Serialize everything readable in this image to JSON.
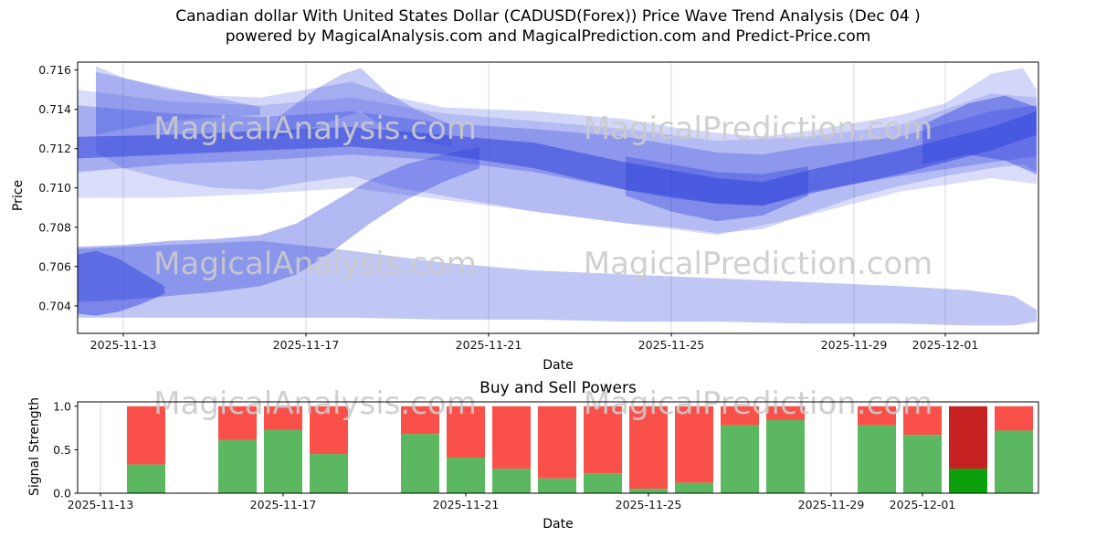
{
  "header": {
    "title_line1": "Canadian dollar With United States Dollar (CADUSD(Forex)) Price Wave Trend Analysis (Dec 04 )",
    "title_line2": "powered by MagicalAnalysis.com and MagicalPrediction.com and Predict-Price.com"
  },
  "watermarks": {
    "left": "MagicalAnalysis.com",
    "right": "MagicalPrediction.com"
  },
  "colors": {
    "band": "#3345dd",
    "buy": "#5cb860",
    "sell": "#f9514a",
    "buy_highlight": "#0ca10c",
    "sell_highlight": "#c62222",
    "grid": "#d9d9d9",
    "spine": "#000000",
    "text": "#111111",
    "watermark": "#cbcbcb"
  },
  "chart_data": [
    {
      "type": "area",
      "name": "price-wave-trend",
      "title": "",
      "ylabel": "Price",
      "xlabel": "Date",
      "ylim": [
        0.7026,
        0.7164
      ],
      "grid": "vertical",
      "legend": "none",
      "yticks": [
        {
          "v": 0.704,
          "label": "0.704"
        },
        {
          "v": 0.706,
          "label": "0.706"
        },
        {
          "v": 0.708,
          "label": "0.708"
        },
        {
          "v": 0.71,
          "label": "0.710"
        },
        {
          "v": 0.712,
          "label": "0.712"
        },
        {
          "v": 0.714,
          "label": "0.714"
        },
        {
          "v": 0.716,
          "label": "0.716"
        }
      ],
      "xticks": [
        {
          "day": 1,
          "label": "2025-11-13"
        },
        {
          "day": 5,
          "label": "2025-11-17"
        },
        {
          "day": 9,
          "label": "2025-11-21"
        },
        {
          "day": 13,
          "label": "2025-11-25"
        },
        {
          "day": 17,
          "label": "2025-11-29"
        },
        {
          "day": 19,
          "label": "2025-12-01"
        }
      ],
      "bands": [
        {
          "name": "lower-channel",
          "op": 0.3,
          "x": [
            0,
            2,
            4,
            6,
            8,
            10,
            12,
            14,
            16,
            18,
            19.5,
            20.5,
            21
          ],
          "hi": [
            0.7069,
            0.7071,
            0.7073,
            0.7068,
            0.7062,
            0.7058,
            0.7056,
            0.7054,
            0.7052,
            0.705,
            0.7048,
            0.7045,
            0.7038
          ],
          "lo": [
            0.7034,
            0.7034,
            0.7034,
            0.7034,
            0.7033,
            0.7033,
            0.7032,
            0.7032,
            0.7031,
            0.7031,
            0.703,
            0.703,
            0.7032
          ]
        },
        {
          "name": "lower-left-core",
          "op": 0.5,
          "x": [
            0,
            0.4,
            0.9,
            1.4,
            1.9
          ],
          "hi": [
            0.7066,
            0.7068,
            0.7064,
            0.7057,
            0.705
          ],
          "lo": [
            0.7036,
            0.7035,
            0.7037,
            0.7041,
            0.7046
          ]
        },
        {
          "name": "rising-band",
          "op": 0.38,
          "x": [
            0,
            1,
            2,
            3,
            4,
            4.8,
            5.6,
            6.4,
            7.2,
            8,
            8.8
          ],
          "hi": [
            0.707,
            0.7071,
            0.7073,
            0.7074,
            0.7076,
            0.7082,
            0.7093,
            0.7104,
            0.7112,
            0.7117,
            0.7121
          ],
          "lo": [
            0.7042,
            0.7043,
            0.7045,
            0.7047,
            0.705,
            0.7056,
            0.7068,
            0.7082,
            0.7094,
            0.7103,
            0.711
          ]
        },
        {
          "name": "upper-wide-envelope",
          "op": 0.22,
          "x": [
            0.4,
            1,
            2,
            3,
            4,
            5,
            6,
            7,
            8,
            9,
            10,
            11,
            12,
            13,
            14,
            15,
            16,
            17,
            18,
            19,
            20,
            20.7,
            21
          ],
          "hi": [
            0.7162,
            0.7156,
            0.715,
            0.7147,
            0.7146,
            0.715,
            0.7154,
            0.7146,
            0.7141,
            0.714,
            0.7139,
            0.7137,
            0.7135,
            0.7131,
            0.7128,
            0.7126,
            0.7129,
            0.7133,
            0.7137,
            0.7143,
            0.7158,
            0.7161,
            0.715
          ],
          "lo": [
            0.7118,
            0.711,
            0.7104,
            0.71,
            0.7099,
            0.7103,
            0.7106,
            0.71,
            0.7096,
            0.7092,
            0.7088,
            0.7085,
            0.7082,
            0.708,
            0.7077,
            0.7079,
            0.7087,
            0.7095,
            0.7101,
            0.7106,
            0.711,
            0.7112,
            0.7108
          ]
        },
        {
          "name": "upper-medium-band",
          "op": 0.3,
          "x": [
            0,
            1,
            2,
            4,
            6,
            8,
            10,
            12,
            13,
            14,
            15,
            16,
            18,
            20,
            21
          ],
          "hi": [
            0.7142,
            0.714,
            0.7138,
            0.7136,
            0.7139,
            0.7133,
            0.713,
            0.7126,
            0.7122,
            0.7118,
            0.7117,
            0.7121,
            0.7126,
            0.7139,
            0.7142
          ],
          "lo": [
            0.7108,
            0.711,
            0.7112,
            0.7114,
            0.7117,
            0.7114,
            0.7108,
            0.7099,
            0.7096,
            0.7092,
            0.7091,
            0.7098,
            0.7106,
            0.7113,
            0.7116
          ]
        },
        {
          "name": "dark-core-band",
          "op": 0.55,
          "x": [
            0,
            2,
            4,
            6,
            7,
            8,
            10,
            12,
            13,
            14,
            15,
            16,
            18,
            20,
            21
          ],
          "hi": [
            0.7126,
            0.7127,
            0.7129,
            0.7131,
            0.7129,
            0.7127,
            0.7123,
            0.7113,
            0.7109,
            0.7105,
            0.7103,
            0.7109,
            0.7119,
            0.7131,
            0.7139
          ],
          "lo": [
            0.7115,
            0.7117,
            0.7119,
            0.7121,
            0.7119,
            0.7117,
            0.711,
            0.7099,
            0.7095,
            0.7092,
            0.7091,
            0.7097,
            0.7107,
            0.7119,
            0.7127
          ]
        },
        {
          "name": "mid-peak-spike",
          "op": 0.28,
          "x": [
            4.4,
            5.2,
            5.8,
            6.2,
            6.8,
            7.4,
            8.2
          ],
          "hi": [
            0.7136,
            0.715,
            0.7158,
            0.7161,
            0.7148,
            0.714,
            0.7132
          ],
          "lo": [
            0.7126,
            0.7131,
            0.7136,
            0.7139,
            0.7129,
            0.7124,
            0.7121
          ]
        },
        {
          "name": "left-upper-wedge",
          "op": 0.26,
          "x": [
            0.4,
            1,
            2,
            3,
            4
          ],
          "hi": [
            0.7159,
            0.7156,
            0.7151,
            0.7146,
            0.7141
          ],
          "lo": [
            0.7127,
            0.713,
            0.7134,
            0.7136,
            0.7137
          ]
        },
        {
          "name": "dip-cluster",
          "op": 0.4,
          "x": [
            12,
            13,
            14,
            15,
            16
          ],
          "hi": [
            0.7116,
            0.7112,
            0.7108,
            0.7107,
            0.7111
          ],
          "lo": [
            0.7096,
            0.7088,
            0.7083,
            0.7086,
            0.7096
          ]
        },
        {
          "name": "right-end-core",
          "op": 0.45,
          "x": [
            18.5,
            19.5,
            20.3,
            21
          ],
          "hi": [
            0.7132,
            0.7143,
            0.7147,
            0.7141
          ],
          "lo": [
            0.7112,
            0.7117,
            0.7114,
            0.7107
          ]
        },
        {
          "name": "broad-haze-band",
          "op": 0.18,
          "x": [
            0,
            2,
            4,
            6,
            8,
            10,
            12,
            14,
            16,
            18,
            20,
            21
          ],
          "hi": [
            0.715,
            0.7144,
            0.7142,
            0.7146,
            0.7138,
            0.7134,
            0.713,
            0.7124,
            0.7126,
            0.7132,
            0.7148,
            0.7146
          ],
          "lo": [
            0.7095,
            0.7095,
            0.7097,
            0.71,
            0.7094,
            0.7088,
            0.7082,
            0.7076,
            0.7086,
            0.7098,
            0.7105,
            0.7102
          ]
        }
      ]
    },
    {
      "type": "bar",
      "name": "buy-sell-powers",
      "title": "Buy and Sell Powers",
      "ylabel": "Signal Strength",
      "xlabel": "Date",
      "ylim": [
        0,
        1.05
      ],
      "stack_total": 1.0,
      "grid": "vertical",
      "legend": "none",
      "yticks": [
        {
          "v": 0.0,
          "label": "0.0"
        },
        {
          "v": 0.5,
          "label": "0.5"
        },
        {
          "v": 1.0,
          "label": "1.0"
        }
      ],
      "xticks": [
        {
          "day": 1,
          "label": "2025-11-13"
        },
        {
          "day": 5,
          "label": "2025-11-17"
        },
        {
          "day": 9,
          "label": "2025-11-21"
        },
        {
          "day": 13,
          "label": "2025-11-25"
        },
        {
          "day": 17,
          "label": "2025-11-29"
        },
        {
          "day": 19,
          "label": "2025-12-01"
        }
      ],
      "bars": [
        {
          "day": 2,
          "date": "2025-11-14",
          "buy": 0.33,
          "sell": 0.67
        },
        {
          "day": 4,
          "date": "2025-11-16",
          "buy": 0.61,
          "sell": 0.39
        },
        {
          "day": 5,
          "date": "2025-11-17",
          "buy": 0.73,
          "sell": 0.27
        },
        {
          "day": 6,
          "date": "2025-11-18",
          "buy": 0.45,
          "sell": 0.55
        },
        {
          "day": 8,
          "date": "2025-11-20",
          "buy": 0.68,
          "sell": 0.32
        },
        {
          "day": 9,
          "date": "2025-11-21",
          "buy": 0.41,
          "sell": 0.59
        },
        {
          "day": 10,
          "date": "2025-11-22",
          "buy": 0.28,
          "sell": 0.72
        },
        {
          "day": 11,
          "date": "2025-11-23",
          "buy": 0.17,
          "sell": 0.83
        },
        {
          "day": 12,
          "date": "2025-11-24",
          "buy": 0.23,
          "sell": 0.77
        },
        {
          "day": 13,
          "date": "2025-11-25",
          "buy": 0.05,
          "sell": 0.95
        },
        {
          "day": 14,
          "date": "2025-11-26",
          "buy": 0.12,
          "sell": 0.88
        },
        {
          "day": 15,
          "date": "2025-11-27",
          "buy": 0.78,
          "sell": 0.22
        },
        {
          "day": 16,
          "date": "2025-11-28",
          "buy": 0.84,
          "sell": 0.16
        },
        {
          "day": 18,
          "date": "2025-11-30",
          "buy": 0.78,
          "sell": 0.22
        },
        {
          "day": 19,
          "date": "2025-12-01",
          "buy": 0.67,
          "sell": 0.33
        },
        {
          "day": 20,
          "date": "2025-12-02",
          "buy": 0.28,
          "sell": 0.72,
          "highlight": true
        },
        {
          "day": 21,
          "date": "2025-12-03",
          "buy": 0.72,
          "sell": 0.28
        }
      ]
    }
  ]
}
